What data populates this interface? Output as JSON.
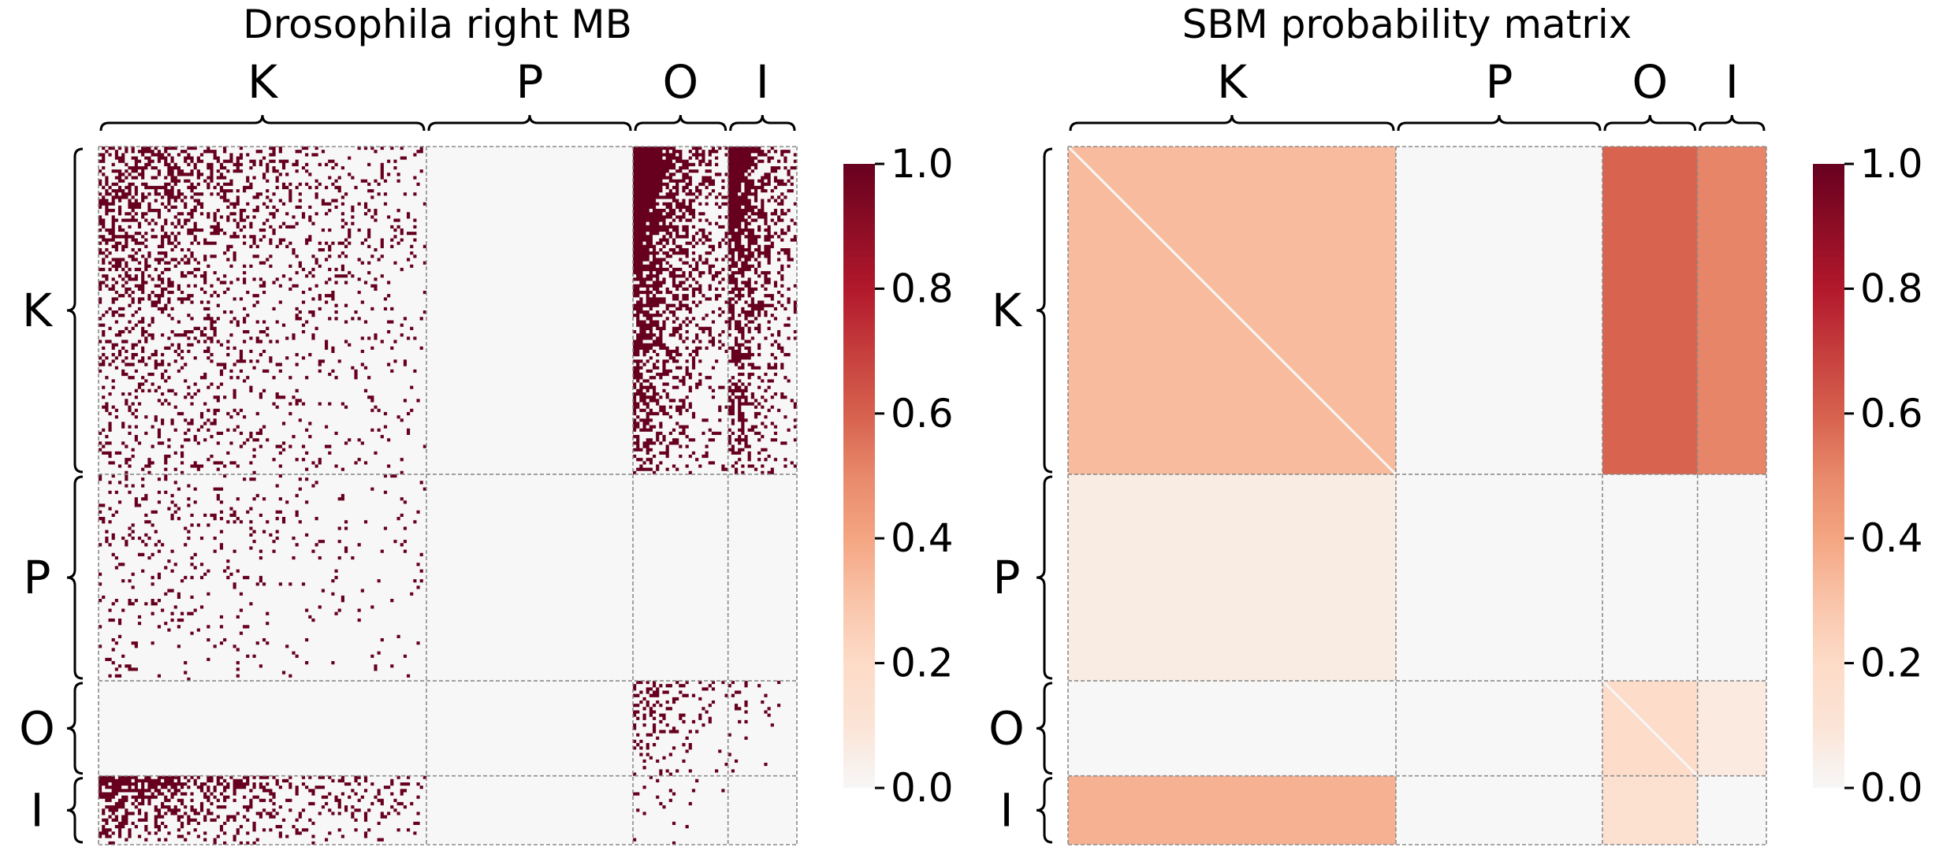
{
  "chart_data": [
    {
      "type": "heatmap",
      "title": "Drosophila right MB",
      "blocks": [
        "K",
        "P",
        "O",
        "I"
      ],
      "block_sizes": [
        100,
        63,
        29,
        21
      ],
      "colorbar": {
        "min": 0.0,
        "max": 1.0,
        "ticks": [
          "0.0",
          "0.2",
          "0.4",
          "0.6",
          "0.8",
          "1.0"
        ]
      },
      "colors": {
        "high": "#67001f",
        "zero": "#f7f7f7",
        "grid": "#8c8c8c"
      },
      "block_density": [
        [
          0.3,
          0.0,
          0.72,
          0.62
        ],
        [
          0.1,
          0.0,
          0.0,
          0.0
        ],
        [
          0.0,
          0.0,
          0.25,
          0.08
        ],
        [
          0.45,
          0.0,
          0.06,
          0.0
        ]
      ]
    },
    {
      "type": "heatmap",
      "title": "SBM probability matrix",
      "blocks": [
        "K",
        "P",
        "O",
        "I"
      ],
      "block_sizes": [
        100,
        63,
        29,
        21
      ],
      "colorbar": {
        "min": 0.0,
        "max": 1.0,
        "ticks": [
          "0.0",
          "0.2",
          "0.4",
          "0.6",
          "0.8",
          "1.0"
        ]
      },
      "colors": {
        "high": "#67001f",
        "zero": "#f7f7f7",
        "grid": "#8c8c8c"
      },
      "values": [
        [
          0.33,
          0.0,
          0.59,
          0.51
        ],
        [
          0.06,
          0.0,
          0.0,
          0.0
        ],
        [
          0.0,
          0.0,
          0.19,
          0.07
        ],
        [
          0.36,
          0.0,
          0.14,
          0.0
        ]
      ]
    }
  ]
}
